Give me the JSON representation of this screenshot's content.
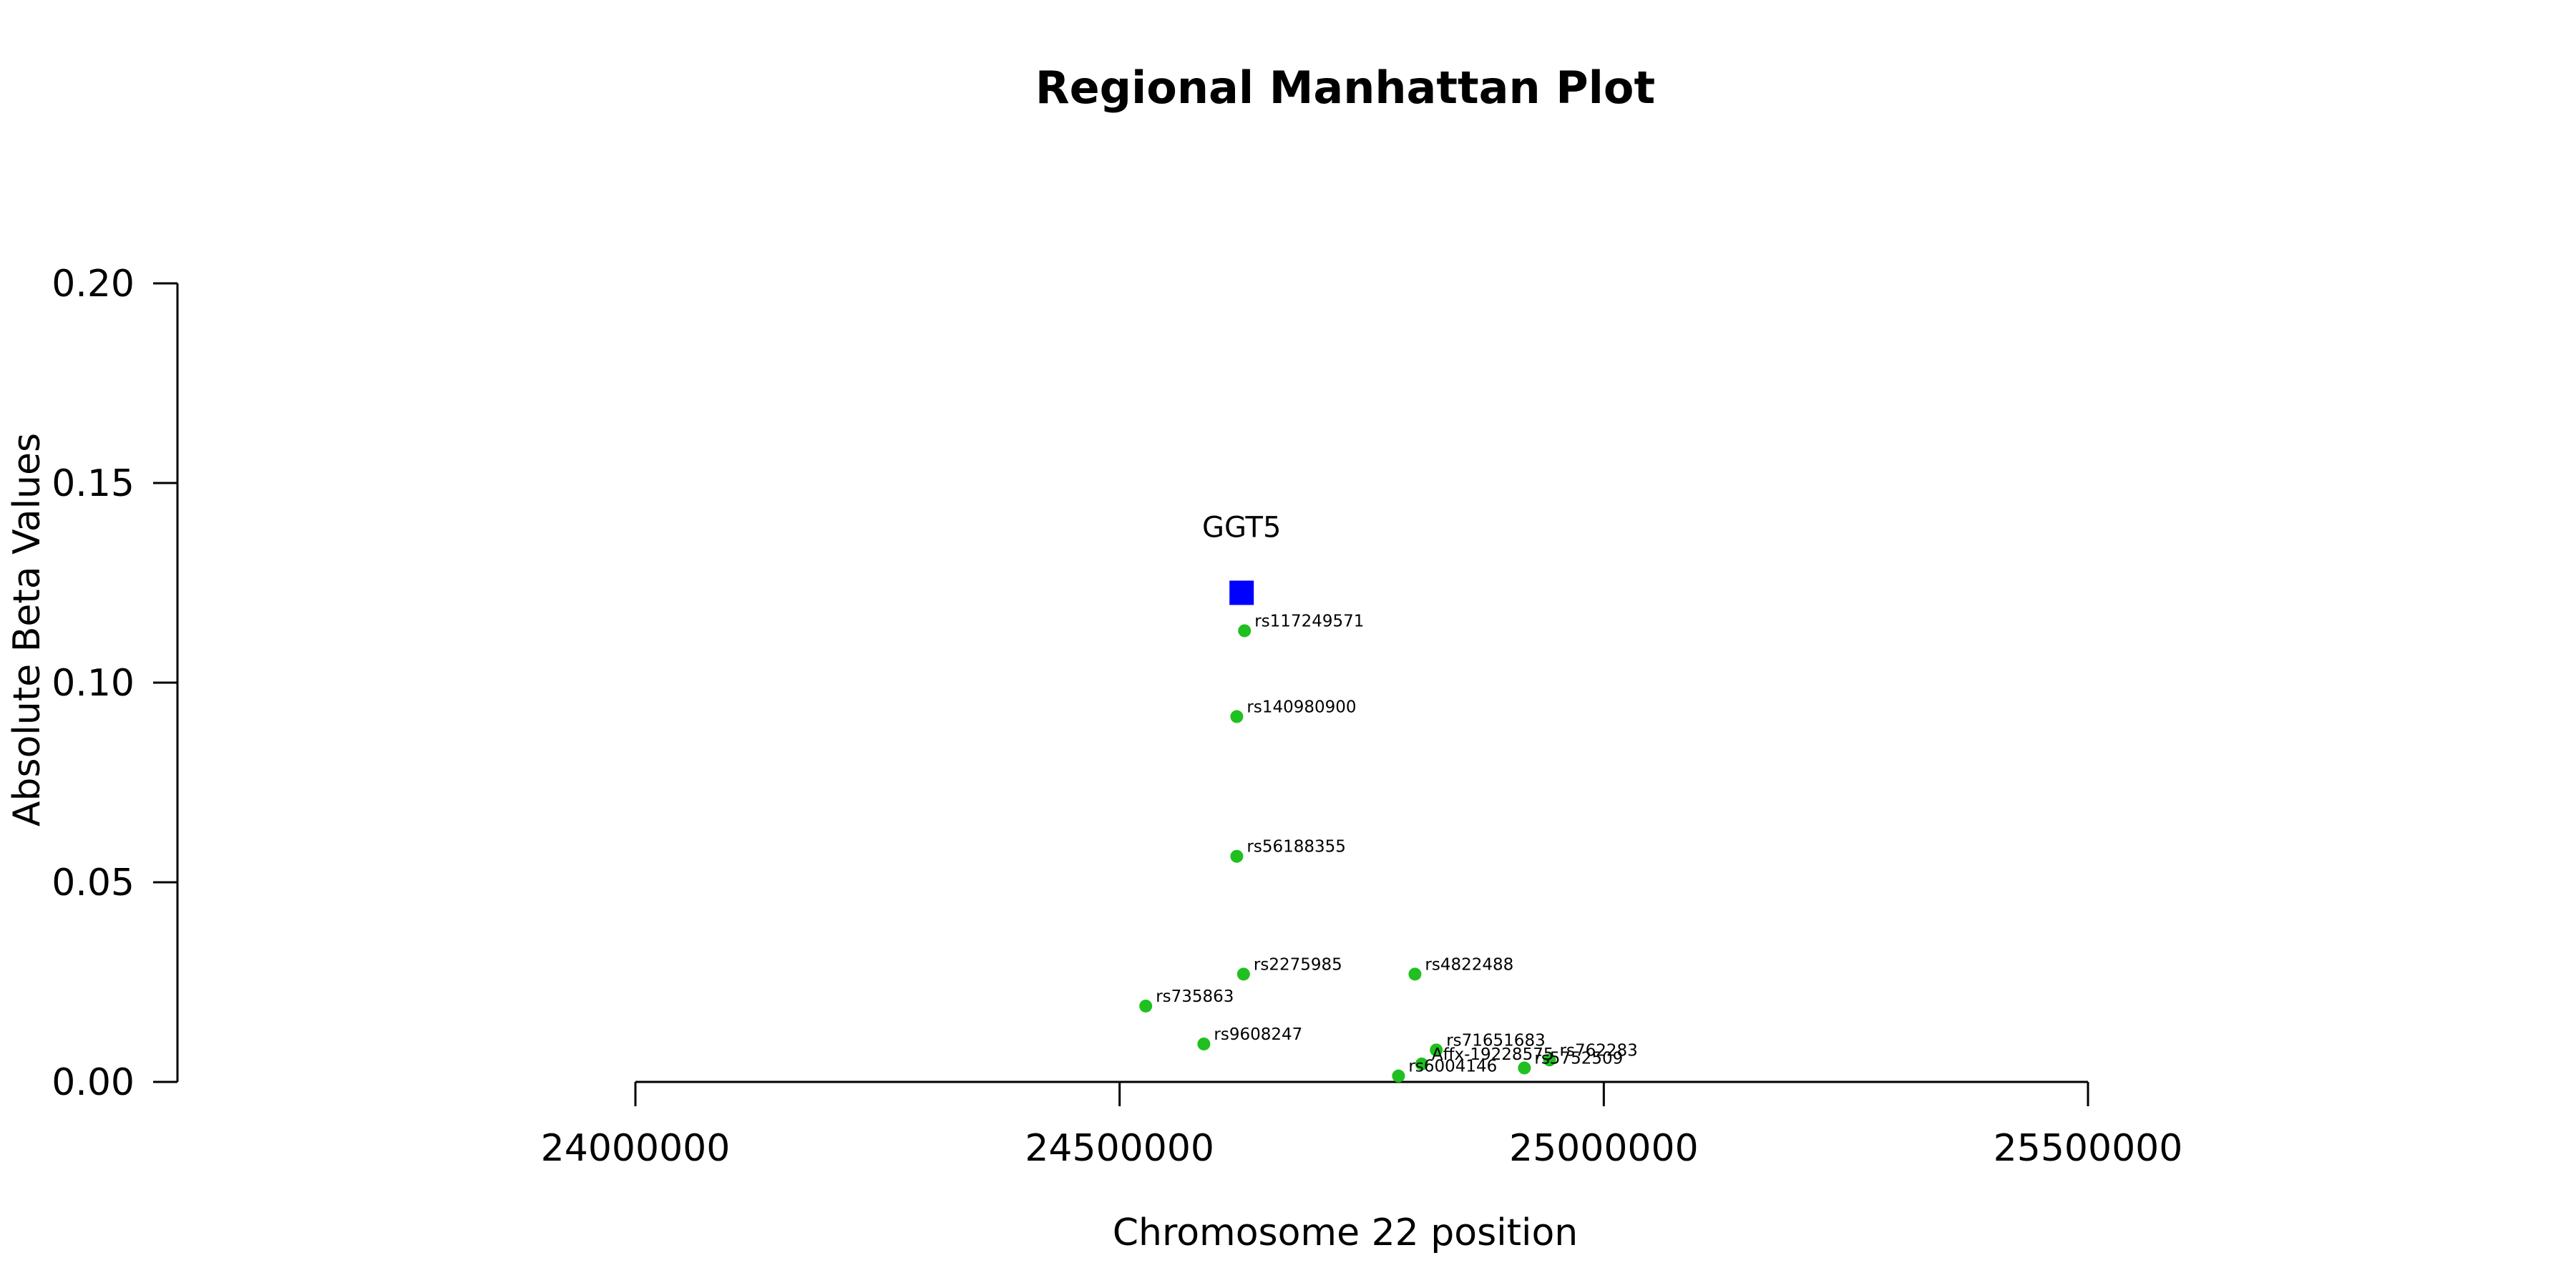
{
  "chart_data": {
    "type": "scatter",
    "title": "Regional Manhattan Plot",
    "xlabel": "Chromosome 22 position",
    "ylabel": "Absolute Beta Values",
    "xlim": [
      24000000,
      25500000
    ],
    "ylim": [
      0,
      0.2
    ],
    "xticks": [
      24000000,
      24500000,
      25000000,
      25500000
    ],
    "yticks": [
      0,
      0.05,
      0.1,
      0.15,
      0.2
    ],
    "ytick_labels": [
      "0.00",
      "0.05",
      "0.10",
      "0.15",
      "0.20"
    ],
    "grid": false,
    "colors": {
      "snp": "#1fc01f",
      "gene": "#0000ff"
    },
    "gene": {
      "name": "GGT5",
      "x": 24626000,
      "y": 0.1225
    },
    "points": [
      {
        "label": "rs117249571",
        "x": 24629000,
        "y": 0.113
      },
      {
        "label": "rs140980900",
        "x": 24621000,
        "y": 0.0915
      },
      {
        "label": "rs56188355",
        "x": 24621000,
        "y": 0.0565
      },
      {
        "label": "rs2275985",
        "x": 24628000,
        "y": 0.027
      },
      {
        "label": "rs4822488",
        "x": 24805000,
        "y": 0.027
      },
      {
        "label": "rs735863",
        "x": 24527000,
        "y": 0.019
      },
      {
        "label": "rs9608247",
        "x": 24587000,
        "y": 0.0095
      },
      {
        "label": "rs71651683",
        "x": 24827000,
        "y": 0.008
      },
      {
        "label": "Affx-19228575",
        "x": 24812000,
        "y": 0.0045
      },
      {
        "label": "rs762283",
        "x": 24944000,
        "y": 0.0055
      },
      {
        "label": "rs5752509",
        "x": 24918000,
        "y": 0.0035
      },
      {
        "label": "rs6004146",
        "x": 24788000,
        "y": 0.0015
      }
    ]
  }
}
